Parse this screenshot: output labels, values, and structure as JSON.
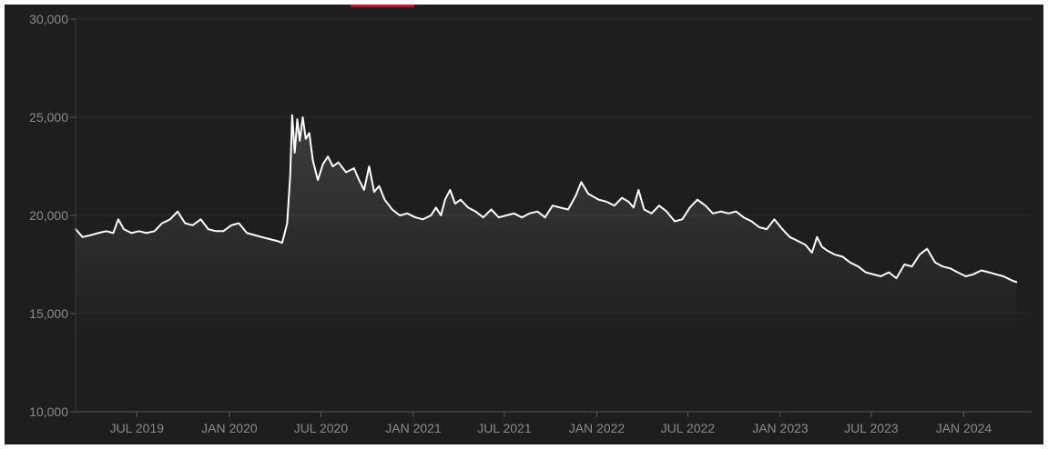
{
  "colors": {
    "background": "#1e1e1e",
    "accent": "#c8102e",
    "line": "#ffffff",
    "grid": "#2c2c2c",
    "axis_text": "#8a8a8a"
  },
  "chart_data": {
    "type": "area",
    "title": "",
    "xlabel": "",
    "ylabel": "",
    "xlim": [
      "2019-03-01",
      "2024-05-15"
    ],
    "ylim": [
      10000,
      30000
    ],
    "grid": true,
    "legend": "none",
    "y_ticks": [
      {
        "value": 10000,
        "label": "10,000"
      },
      {
        "value": 15000,
        "label": "15,000"
      },
      {
        "value": 20000,
        "label": "20,000"
      },
      {
        "value": 25000,
        "label": "25,000"
      },
      {
        "value": 30000,
        "label": "30,000"
      }
    ],
    "x_ticks": [
      {
        "value": "2019-07-01",
        "label": "JUL 2019"
      },
      {
        "value": "2020-01-01",
        "label": "JAN 2020"
      },
      {
        "value": "2020-07-01",
        "label": "JUL 2020"
      },
      {
        "value": "2021-01-01",
        "label": "JAN 2021"
      },
      {
        "value": "2021-07-01",
        "label": "JUL 2021"
      },
      {
        "value": "2022-01-01",
        "label": "JAN 2022"
      },
      {
        "value": "2022-07-01",
        "label": "JUL 2022"
      },
      {
        "value": "2023-01-01",
        "label": "JAN 2023"
      },
      {
        "value": "2023-07-01",
        "label": "JUL 2023"
      },
      {
        "value": "2024-01-01",
        "label": "JAN 2024"
      }
    ],
    "series": [
      {
        "values": [
          [
            "2019-03-01",
            19300
          ],
          [
            "2019-03-15",
            18900
          ],
          [
            "2019-04-01",
            19000
          ],
          [
            "2019-04-15",
            19100
          ],
          [
            "2019-05-01",
            19200
          ],
          [
            "2019-05-15",
            19100
          ],
          [
            "2019-05-25",
            19800
          ],
          [
            "2019-06-05",
            19300
          ],
          [
            "2019-06-20",
            19100
          ],
          [
            "2019-07-05",
            19200
          ],
          [
            "2019-07-20",
            19100
          ],
          [
            "2019-08-05",
            19200
          ],
          [
            "2019-08-20",
            19600
          ],
          [
            "2019-09-05",
            19800
          ],
          [
            "2019-09-20",
            20200
          ],
          [
            "2019-10-05",
            19600
          ],
          [
            "2019-10-20",
            19500
          ],
          [
            "2019-11-05",
            19800
          ],
          [
            "2019-11-20",
            19300
          ],
          [
            "2019-12-05",
            19200
          ],
          [
            "2019-12-20",
            19200
          ],
          [
            "2020-01-05",
            19500
          ],
          [
            "2020-01-20",
            19600
          ],
          [
            "2020-02-05",
            19100
          ],
          [
            "2020-02-20",
            19000
          ],
          [
            "2020-03-05",
            18900
          ],
          [
            "2020-03-20",
            18800
          ],
          [
            "2020-04-05",
            18700
          ],
          [
            "2020-04-15",
            18600
          ],
          [
            "2020-04-25",
            19600
          ],
          [
            "2020-05-01",
            22000
          ],
          [
            "2020-05-05",
            25100
          ],
          [
            "2020-05-10",
            23200
          ],
          [
            "2020-05-15",
            24900
          ],
          [
            "2020-05-20",
            23800
          ],
          [
            "2020-05-26",
            25000
          ],
          [
            "2020-06-01",
            23900
          ],
          [
            "2020-06-08",
            24200
          ],
          [
            "2020-06-15",
            22800
          ],
          [
            "2020-06-25",
            21800
          ],
          [
            "2020-07-05",
            22600
          ],
          [
            "2020-07-15",
            23000
          ],
          [
            "2020-07-25",
            22500
          ],
          [
            "2020-08-05",
            22700
          ],
          [
            "2020-08-20",
            22200
          ],
          [
            "2020-09-05",
            22400
          ],
          [
            "2020-09-15",
            21800
          ],
          [
            "2020-09-25",
            21300
          ],
          [
            "2020-10-05",
            22500
          ],
          [
            "2020-10-15",
            21200
          ],
          [
            "2020-10-25",
            21500
          ],
          [
            "2020-11-05",
            20800
          ],
          [
            "2020-11-20",
            20300
          ],
          [
            "2020-12-05",
            20000
          ],
          [
            "2020-12-20",
            20100
          ],
          [
            "2021-01-05",
            19900
          ],
          [
            "2021-01-20",
            19800
          ],
          [
            "2021-02-05",
            20000
          ],
          [
            "2021-02-15",
            20400
          ],
          [
            "2021-02-25",
            20000
          ],
          [
            "2021-03-05",
            20800
          ],
          [
            "2021-03-15",
            21300
          ],
          [
            "2021-03-25",
            20600
          ],
          [
            "2021-04-05",
            20800
          ],
          [
            "2021-04-20",
            20400
          ],
          [
            "2021-05-05",
            20200
          ],
          [
            "2021-05-20",
            19900
          ],
          [
            "2021-06-05",
            20300
          ],
          [
            "2021-06-20",
            19900
          ],
          [
            "2021-07-05",
            20000
          ],
          [
            "2021-07-20",
            20100
          ],
          [
            "2021-08-05",
            19900
          ],
          [
            "2021-08-20",
            20100
          ],
          [
            "2021-09-05",
            20200
          ],
          [
            "2021-09-20",
            19900
          ],
          [
            "2021-10-05",
            20500
          ],
          [
            "2021-10-20",
            20400
          ],
          [
            "2021-11-05",
            20300
          ],
          [
            "2021-11-20",
            21000
          ],
          [
            "2021-12-01",
            21700
          ],
          [
            "2021-12-15",
            21100
          ],
          [
            "2022-01-05",
            20800
          ],
          [
            "2022-01-20",
            20700
          ],
          [
            "2022-02-05",
            20500
          ],
          [
            "2022-02-20",
            20900
          ],
          [
            "2022-03-05",
            20700
          ],
          [
            "2022-03-15",
            20400
          ],
          [
            "2022-03-25",
            21300
          ],
          [
            "2022-04-05",
            20300
          ],
          [
            "2022-04-20",
            20100
          ],
          [
            "2022-05-05",
            20500
          ],
          [
            "2022-05-20",
            20200
          ],
          [
            "2022-06-05",
            19700
          ],
          [
            "2022-06-20",
            19800
          ],
          [
            "2022-07-05",
            20400
          ],
          [
            "2022-07-20",
            20800
          ],
          [
            "2022-08-05",
            20500
          ],
          [
            "2022-08-20",
            20100
          ],
          [
            "2022-09-05",
            20200
          ],
          [
            "2022-09-20",
            20100
          ],
          [
            "2022-10-05",
            20200
          ],
          [
            "2022-10-20",
            19900
          ],
          [
            "2022-11-05",
            19700
          ],
          [
            "2022-11-20",
            19400
          ],
          [
            "2022-12-05",
            19300
          ],
          [
            "2022-12-20",
            19800
          ],
          [
            "2023-01-05",
            19300
          ],
          [
            "2023-01-20",
            18900
          ],
          [
            "2023-02-05",
            18700
          ],
          [
            "2023-02-20",
            18500
          ],
          [
            "2023-03-05",
            18100
          ],
          [
            "2023-03-15",
            18900
          ],
          [
            "2023-03-25",
            18400
          ],
          [
            "2023-04-05",
            18200
          ],
          [
            "2023-04-20",
            18000
          ],
          [
            "2023-05-05",
            17900
          ],
          [
            "2023-05-20",
            17600
          ],
          [
            "2023-06-05",
            17400
          ],
          [
            "2023-06-20",
            17100
          ],
          [
            "2023-07-05",
            17000
          ],
          [
            "2023-07-20",
            16900
          ],
          [
            "2023-08-05",
            17100
          ],
          [
            "2023-08-20",
            16800
          ],
          [
            "2023-09-05",
            17500
          ],
          [
            "2023-09-20",
            17400
          ],
          [
            "2023-10-05",
            18000
          ],
          [
            "2023-10-20",
            18300
          ],
          [
            "2023-11-05",
            17600
          ],
          [
            "2023-11-20",
            17400
          ],
          [
            "2023-12-05",
            17300
          ],
          [
            "2023-12-20",
            17100
          ],
          [
            "2024-01-05",
            16900
          ],
          [
            "2024-01-20",
            17000
          ],
          [
            "2024-02-05",
            17200
          ],
          [
            "2024-02-20",
            17100
          ],
          [
            "2024-03-05",
            17000
          ],
          [
            "2024-03-20",
            16900
          ],
          [
            "2024-04-05",
            16700
          ],
          [
            "2024-04-15",
            16600
          ]
        ]
      }
    ]
  }
}
